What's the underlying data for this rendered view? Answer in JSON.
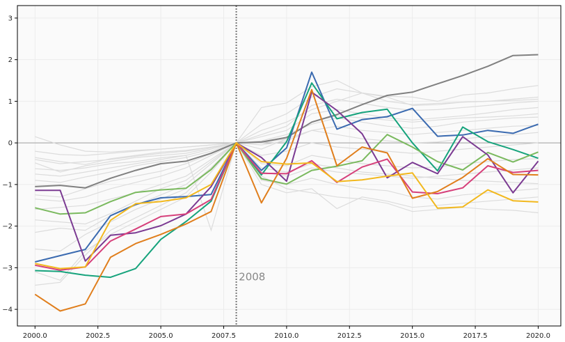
{
  "chart_data": {
    "type": "line",
    "title": "",
    "xlabel": "",
    "ylabel": "",
    "xlim": [
      1999.3,
      2020.9
    ],
    "ylim": [
      -4.4,
      3.3
    ],
    "grid": true,
    "x_ticks": [
      2000,
      2002.5,
      2005,
      2007.5,
      2010,
      2012.5,
      2015,
      2017.5,
      2020
    ],
    "x_tick_labels": [
      "2000.0",
      "2002.5",
      "2005.0",
      "2007.5",
      "2010.0",
      "2012.5",
      "2015.0",
      "2017.5",
      "2020.0"
    ],
    "y_ticks": [
      -4,
      -3,
      -2,
      -1,
      0,
      1,
      2,
      3
    ],
    "y_tick_labels": [
      "−4",
      "−3",
      "−2",
      "−1",
      "0",
      "1",
      "2",
      "3"
    ],
    "reference_hline": 0,
    "reference_vline": 2008,
    "annotation": {
      "text": "2008",
      "x": 2008.1,
      "y": -3.3
    },
    "x": [
      2000,
      2001,
      2002,
      2003,
      2004,
      2005,
      2006,
      2007,
      2008,
      2009,
      2010,
      2011,
      2012,
      2013,
      2014,
      2015,
      2016,
      2017,
      2018,
      2019,
      2020
    ],
    "highlight_series": [
      {
        "name": "gray",
        "color": "#808080",
        "values": [
          -1.05,
          -1.02,
          -1.08,
          -0.85,
          -0.66,
          -0.5,
          -0.44,
          -0.25,
          0.0,
          0.02,
          0.13,
          0.5,
          0.68,
          0.92,
          1.14,
          1.22,
          1.42,
          1.62,
          1.84,
          2.1,
          2.12
        ]
      },
      {
        "name": "blue",
        "color": "#3a6ab0",
        "values": [
          -2.86,
          -2.71,
          -2.56,
          -1.75,
          -1.48,
          -1.32,
          -1.29,
          -1.24,
          0.0,
          -0.66,
          -0.12,
          1.7,
          0.33,
          0.56,
          0.63,
          0.83,
          0.16,
          0.19,
          0.3,
          0.23,
          0.45
        ]
      },
      {
        "name": "teal",
        "color": "#16a37c",
        "values": [
          -3.07,
          -3.09,
          -3.18,
          -3.23,
          -3.02,
          -2.32,
          -1.89,
          -1.4,
          0.0,
          -0.77,
          0.03,
          1.44,
          0.58,
          0.73,
          0.81,
          0.0,
          -0.67,
          0.38,
          0.03,
          -0.16,
          -0.37
        ]
      },
      {
        "name": "green",
        "color": "#7ab95e",
        "values": [
          -1.56,
          -1.71,
          -1.68,
          -1.41,
          -1.19,
          -1.13,
          -1.09,
          -0.64,
          0.0,
          -0.86,
          -0.99,
          -0.66,
          -0.56,
          -0.43,
          0.2,
          -0.1,
          -0.45,
          -0.65,
          -0.23,
          -0.46,
          -0.22
        ]
      },
      {
        "name": "purple",
        "color": "#7b3a92",
        "values": [
          -1.14,
          -1.14,
          -2.84,
          -2.22,
          -2.16,
          -1.99,
          -1.71,
          -1.05,
          0.0,
          -0.35,
          -0.92,
          1.22,
          0.78,
          0.22,
          -0.84,
          -0.47,
          -0.74,
          0.15,
          -0.29,
          -1.2,
          -0.44
        ]
      },
      {
        "name": "pink",
        "color": "#d63f7a",
        "values": [
          -2.94,
          -3.06,
          -2.98,
          -2.36,
          -2.07,
          -1.77,
          -1.71,
          -1.36,
          0.0,
          -0.73,
          -0.74,
          -0.43,
          -0.95,
          -0.58,
          -0.39,
          -1.18,
          -1.22,
          -1.08,
          -0.55,
          -0.71,
          -0.66
        ]
      },
      {
        "name": "orange",
        "color": "#e07e1c",
        "values": [
          -3.64,
          -4.04,
          -3.87,
          -2.75,
          -2.42,
          -2.2,
          -1.95,
          -1.65,
          0.0,
          -1.44,
          -0.37,
          1.28,
          -0.55,
          -0.1,
          -0.24,
          -1.33,
          -1.17,
          -0.83,
          -0.38,
          -0.76,
          -0.77
        ]
      },
      {
        "name": "yellow",
        "color": "#f2b81d",
        "values": [
          -2.9,
          -3.02,
          -2.98,
          -1.86,
          -1.46,
          -1.41,
          -1.32,
          -1.0,
          0.0,
          -0.45,
          -0.51,
          -0.48,
          -0.93,
          -0.89,
          -0.8,
          -0.72,
          -1.57,
          -1.54,
          -1.13,
          -1.39,
          -1.42
        ]
      }
    ],
    "background_series_color": "#dcdcdc",
    "background_series": [
      [
        -0.35,
        -0.45,
        -0.52,
        -0.38,
        -0.3,
        -0.22,
        -0.18,
        -0.1,
        0.0,
        0.85,
        0.96,
        1.35,
        1.5,
        1.2,
        1.1,
        0.9,
        0.92,
        0.98,
        1.0,
        1.05,
        1.1
      ],
      [
        -0.62,
        -0.66,
        -0.6,
        -0.5,
        -0.45,
        -0.36,
        -0.3,
        -0.15,
        0.0,
        0.45,
        0.7,
        1.1,
        1.3,
        1.2,
        1.12,
        1.1,
        1.0,
        1.15,
        1.2,
        1.3,
        1.38
      ],
      [
        -0.9,
        -0.95,
        -0.82,
        -0.7,
        -0.55,
        -0.45,
        -0.35,
        -0.2,
        0.0,
        0.2,
        0.4,
        0.9,
        1.05,
        0.95,
        0.85,
        0.78,
        0.8,
        0.85,
        0.9,
        0.96,
        1.0
      ],
      [
        -1.25,
        -1.3,
        -1.1,
        -0.92,
        -0.8,
        -0.68,
        -0.5,
        -0.26,
        0.0,
        0.15,
        0.3,
        0.7,
        0.8,
        0.7,
        0.6,
        0.55,
        0.6,
        0.65,
        0.72,
        0.8,
        0.85
      ],
      [
        -0.2,
        -0.28,
        -0.3,
        -0.25,
        -0.2,
        -0.15,
        -0.1,
        -0.05,
        0.0,
        0.05,
        0.2,
        0.45,
        0.6,
        0.5,
        0.4,
        0.35,
        0.4,
        0.5,
        0.55,
        0.6,
        0.62
      ],
      [
        0.15,
        -0.05,
        -0.2,
        -0.22,
        -0.18,
        -0.15,
        -0.1,
        -0.05,
        0.0,
        -0.05,
        0.05,
        0.3,
        0.4,
        0.3,
        0.25,
        0.2,
        0.25,
        0.3,
        0.35,
        0.4,
        0.42
      ],
      [
        -0.48,
        -0.7,
        -0.55,
        -0.45,
        -0.35,
        -0.3,
        -0.25,
        -0.12,
        0.0,
        -0.15,
        0.1,
        0.3,
        0.2,
        0.1,
        0.05,
        0.0,
        0.02,
        0.1,
        0.15,
        0.2,
        0.25
      ],
      [
        -1.6,
        -1.55,
        -1.5,
        -1.35,
        -1.2,
        -1.0,
        -0.8,
        -0.4,
        0.0,
        -0.3,
        -0.2,
        0.0,
        -0.1,
        -0.15,
        -0.2,
        -0.25,
        -0.2,
        -0.15,
        -0.1,
        -0.05,
        0.0
      ],
      [
        -1.85,
        -1.9,
        -1.95,
        -1.7,
        -1.4,
        -1.1,
        -0.9,
        -0.45,
        0.0,
        -0.5,
        -0.55,
        -0.3,
        -0.4,
        -0.5,
        -0.55,
        -0.6,
        -0.58,
        -0.5,
        -0.45,
        -0.4,
        -0.38
      ],
      [
        -2.15,
        -2.05,
        -2.1,
        -1.75,
        -1.5,
        -1.25,
        -1.0,
        -0.5,
        0.0,
        -0.7,
        -0.8,
        -0.6,
        -0.7,
        -0.75,
        -0.8,
        -0.85,
        -0.8,
        -0.75,
        -0.7,
        -0.65,
        -0.6
      ],
      [
        -2.55,
        -2.6,
        -2.2,
        -1.9,
        -1.6,
        -1.35,
        -1.1,
        -0.6,
        0.0,
        -0.9,
        -1.0,
        -0.85,
        -1.0,
        -1.1,
        -1.15,
        -1.3,
        -1.35,
        -1.25,
        -1.2,
        -1.15,
        -1.1
      ],
      [
        -3.1,
        -3.3,
        -2.6,
        -2.2,
        -1.9,
        -1.6,
        -1.3,
        -0.7,
        0.0,
        -1.0,
        -1.2,
        -1.1,
        -1.58,
        -1.3,
        -1.4,
        -1.55,
        -1.5,
        -1.45,
        -1.4,
        -1.35,
        -1.3
      ],
      [
        -3.42,
        -3.35,
        -2.7,
        -2.1,
        -1.8,
        -1.5,
        -1.2,
        -0.6,
        0.0,
        -0.8,
        -1.1,
        -1.2,
        -1.3,
        -1.35,
        -1.45,
        -1.65,
        -1.6,
        -1.55,
        -1.6,
        -1.62,
        -1.68
      ],
      [
        -0.75,
        -0.8,
        -0.7,
        -0.6,
        -0.5,
        -0.4,
        -0.3,
        -2.1,
        0.0,
        -0.6,
        -0.7,
        -0.5,
        -0.6,
        -0.7,
        -0.75,
        -0.8,
        -0.85,
        -0.9,
        -0.92,
        -0.95,
        -0.98
      ],
      [
        -0.4,
        -0.5,
        -0.45,
        -0.4,
        -0.32,
        -0.25,
        -0.2,
        -0.1,
        0.0,
        0.3,
        0.5,
        0.8,
        1.0,
        1.2,
        1.0,
        0.92,
        0.95,
        0.98,
        1.0,
        1.02,
        1.05
      ],
      [
        -1.35,
        -1.4,
        -1.3,
        -1.1,
        -0.95,
        -0.8,
        -0.6,
        -0.3,
        0.0,
        0.0,
        0.1,
        0.5,
        0.65,
        0.6,
        0.55,
        0.5,
        0.55,
        0.6,
        0.62,
        0.65,
        0.7
      ]
    ]
  }
}
